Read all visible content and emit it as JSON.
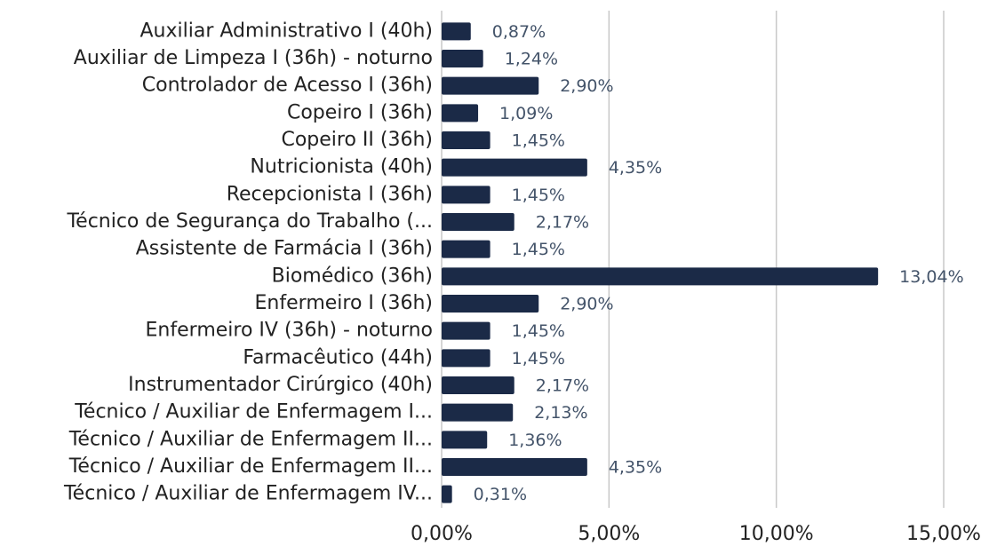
{
  "chart_data": {
    "type": "bar",
    "orientation": "horizontal",
    "color": "#1b2a47",
    "grid": true,
    "categories": [
      "Auxiliar Administrativo I (40h)",
      "Auxiliar de Limpeza I (36h) - noturno",
      "Controlador de Acesso I (36h)",
      "Copeiro I (36h)",
      "Copeiro II (36h)",
      "Nutricionista (40h)",
      "Recepcionista I (36h)",
      "Técnico de Segurança do Trabalho (...",
      "Assistente de Farmácia I (36h)",
      "Biomédico (36h)",
      "Enfermeiro I (36h)",
      "Enfermeiro IV (36h) - noturno",
      "Farmacêutico (44h)",
      "Instrumentador Cirúrgico (40h)",
      "Técnico / Auxiliar de Enfermagem I...",
      "Técnico / Auxiliar de Enfermagem II...",
      "Técnico / Auxiliar de Enfermagem II...",
      "Técnico / Auxiliar de Enfermagem IV..."
    ],
    "values": [
      0.87,
      1.24,
      2.9,
      1.09,
      1.45,
      4.35,
      1.45,
      2.17,
      1.45,
      13.04,
      2.9,
      1.45,
      1.45,
      2.17,
      2.13,
      1.36,
      4.35,
      0.31
    ],
    "value_labels": [
      "0,87%",
      "1,24%",
      "2,90%",
      "1,09%",
      "1,45%",
      "4,35%",
      "1,45%",
      "2,17%",
      "1,45%",
      "13,04%",
      "2,90%",
      "1,45%",
      "1,45%",
      "2,17%",
      "2,13%",
      "1,36%",
      "4,35%",
      "0,31%"
    ],
    "xlim": [
      0,
      15
    ],
    "xticks": [
      {
        "value": 0,
        "label": "0,00%"
      },
      {
        "value": 5,
        "label": "5,00%"
      },
      {
        "value": 10,
        "label": "10,00%"
      },
      {
        "value": 15,
        "label": "15,00%"
      }
    ]
  }
}
